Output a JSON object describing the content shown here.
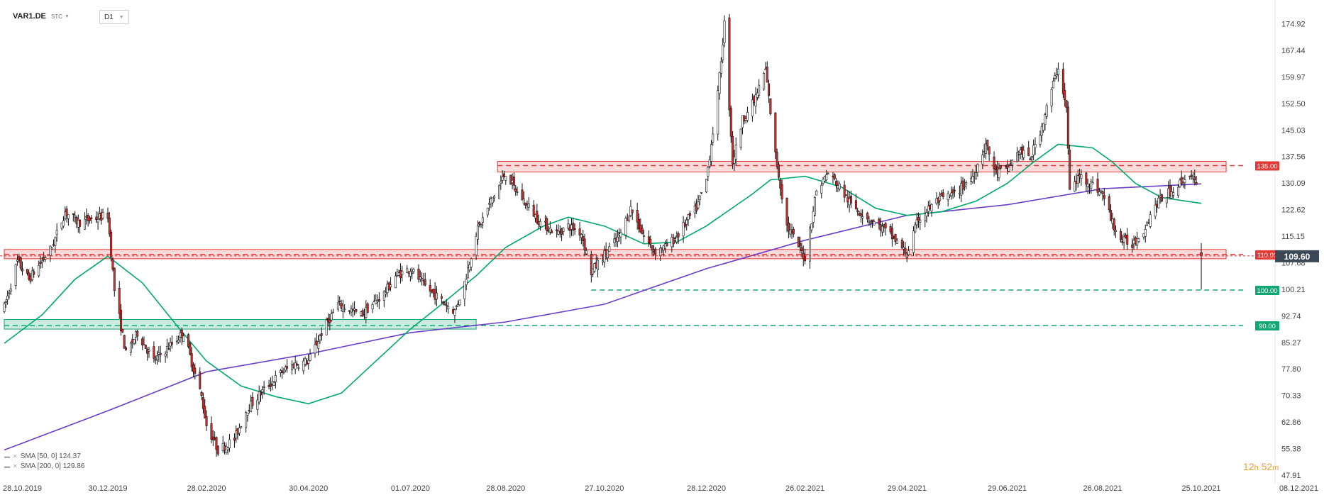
{
  "header": {
    "symbol": "VAR1.DE",
    "mode": "STC",
    "timeframe": "D1"
  },
  "legend": [
    {
      "label": "SMA [50, 0] 124.37",
      "color": "#00a86b"
    },
    {
      "label": "SMA [200, 0] 129.86",
      "color": "#6a3fc9"
    }
  ],
  "countdown": {
    "hours": "12",
    "h_unit": "h",
    "minutes": "52",
    "m_unit": "m"
  },
  "icons": {
    "visibility": "eye-icon",
    "remove": "close-icon",
    "dropdown": "chevron-down-icon"
  },
  "chart_data": {
    "type": "candlestick",
    "symbol": "VAR1.DE",
    "timeframe": "D1",
    "xlim": [
      "28.10.2019",
      "08.12.2021"
    ],
    "ylim": [
      47.91,
      180
    ],
    "x_ticks": [
      "28.10.2019",
      "30.12.2019",
      "28.02.2020",
      "30.04.2020",
      "01.07.2020",
      "28.08.2020",
      "27.10.2020",
      "28.12.2020",
      "26.02.2021",
      "29.04.2021",
      "29.06.2021",
      "26.08.2021",
      "25.10.2021",
      "08.12.2021"
    ],
    "y_ticks": [
      174.92,
      167.44,
      159.97,
      152.5,
      145.03,
      137.56,
      130.09,
      122.62,
      115.15,
      107.68,
      100.21,
      92.74,
      85.27,
      77.8,
      70.33,
      62.86,
      55.38,
      47.91
    ],
    "current_price": 109.6,
    "close_path": [
      [
        "28.10.2019",
        95
      ],
      [
        "05.11.2019",
        108
      ],
      [
        "12.11.2019",
        103
      ],
      [
        "26.11.2019",
        112
      ],
      [
        "04.12.2019",
        122
      ],
      [
        "12.12.2019",
        119
      ],
      [
        "30.12.2019",
        121
      ],
      [
        "03.01.2020",
        100
      ],
      [
        "10.01.2020",
        82
      ],
      [
        "17.01.2020",
        88
      ],
      [
        "27.01.2020",
        80
      ],
      [
        "05.02.2020",
        84
      ],
      [
        "14.02.2020",
        88
      ],
      [
        "20.02.2020",
        78
      ],
      [
        "25.02.2020",
        70
      ],
      [
        "28.02.2020",
        62
      ],
      [
        "06.03.2020",
        55
      ],
      [
        "16.03.2020",
        58
      ],
      [
        "23.03.2020",
        66
      ],
      [
        "01.04.2020",
        71
      ],
      [
        "14.04.2020",
        77
      ],
      [
        "21.04.2020",
        79
      ],
      [
        "30.04.2020",
        80
      ],
      [
        "08.05.2020",
        88
      ],
      [
        "18.05.2020",
        96
      ],
      [
        "01.06.2020",
        93
      ],
      [
        "15.06.2020",
        99
      ],
      [
        "22.06.2020",
        104
      ],
      [
        "01.07.2020",
        106
      ],
      [
        "10.07.2020",
        101
      ],
      [
        "20.07.2020",
        97
      ],
      [
        "28.07.2020",
        94
      ],
      [
        "03.08.2020",
        102
      ],
      [
        "10.08.2020",
        116
      ],
      [
        "18.08.2020",
        124
      ],
      [
        "28.08.2020",
        133
      ],
      [
        "03.09.2020",
        128
      ],
      [
        "10.09.2020",
        124
      ],
      [
        "18.09.2020",
        119
      ],
      [
        "28.09.2020",
        116
      ],
      [
        "05.10.2020",
        118
      ],
      [
        "13.10.2020",
        116
      ],
      [
        "19.10.2020",
        105
      ],
      [
        "27.10.2020",
        110
      ],
      [
        "05.11.2020",
        115
      ],
      [
        "12.11.2020",
        123
      ],
      [
        "19.11.2020",
        116
      ],
      [
        "26.11.2020",
        111
      ],
      [
        "03.12.2020",
        112
      ],
      [
        "10.12.2020",
        115
      ],
      [
        "17.12.2020",
        120
      ],
      [
        "22.12.2020",
        123
      ],
      [
        "28.12.2020",
        131
      ],
      [
        "04.01.2021",
        155
      ],
      [
        "08.01.2021",
        175
      ],
      [
        "13.01.2021",
        136
      ],
      [
        "19.01.2021",
        148
      ],
      [
        "26.01.2021",
        153
      ],
      [
        "02.02.2021",
        162
      ],
      [
        "08.02.2021",
        138
      ],
      [
        "15.02.2021",
        118
      ],
      [
        "26.02.2021",
        109
      ],
      [
        "05.03.2021",
        128
      ],
      [
        "12.03.2021",
        133
      ],
      [
        "19.03.2021",
        129
      ],
      [
        "26.03.2021",
        124
      ],
      [
        "06.04.2021",
        120
      ],
      [
        "15.04.2021",
        117
      ],
      [
        "22.04.2021",
        114
      ],
      [
        "29.04.2021",
        110
      ],
      [
        "06.05.2021",
        120
      ],
      [
        "17.05.2021",
        125
      ],
      [
        "28.05.2021",
        127
      ],
      [
        "08.06.2021",
        132
      ],
      [
        "16.06.2021",
        141
      ],
      [
        "22.06.2021",
        133
      ],
      [
        "29.06.2021",
        134
      ],
      [
        "06.07.2021",
        139
      ],
      [
        "13.07.2021",
        137
      ],
      [
        "20.07.2021",
        146
      ],
      [
        "27.07.2021",
        158
      ],
      [
        "30.07.2021",
        163
      ],
      [
        "04.08.2021",
        151
      ],
      [
        "06.08.2021",
        128
      ],
      [
        "12.08.2021",
        132
      ],
      [
        "19.08.2021",
        130
      ],
      [
        "26.08.2021",
        127
      ],
      [
        "01.09.2021",
        119
      ],
      [
        "06.09.2021",
        114
      ],
      [
        "13.09.2021",
        113
      ],
      [
        "20.09.2021",
        117
      ],
      [
        "27.09.2021",
        124
      ],
      [
        "04.10.2021",
        127
      ],
      [
        "12.10.2021",
        130
      ],
      [
        "18.10.2021",
        133
      ],
      [
        "22.10.2021",
        129
      ],
      [
        "25.10.2021",
        109.6
      ]
    ],
    "last_candle": {
      "open": 110.5,
      "high": 113.2,
      "low": 100.1,
      "close": 109.6
    },
    "sma50": [
      [
        "28.10.2019",
        85
      ],
      [
        "20.11.2019",
        93
      ],
      [
        "10.12.2019",
        103
      ],
      [
        "30.12.2019",
        109.5
      ],
      [
        "20.01.2020",
        102
      ],
      [
        "10.02.2020",
        90
      ],
      [
        "28.02.2020",
        80
      ],
      [
        "20.03.2020",
        73
      ],
      [
        "10.04.2020",
        70
      ],
      [
        "30.04.2020",
        68
      ],
      [
        "20.05.2020",
        71
      ],
      [
        "10.06.2020",
        80
      ],
      [
        "01.07.2020",
        89
      ],
      [
        "20.07.2020",
        96
      ],
      [
        "10.08.2020",
        104
      ],
      [
        "28.08.2020",
        112
      ],
      [
        "20.09.2020",
        118
      ],
      [
        "05.10.2020",
        120.5
      ],
      [
        "27.10.2020",
        118
      ],
      [
        "20.11.2020",
        113
      ],
      [
        "10.12.2020",
        113.5
      ],
      [
        "28.12.2020",
        118
      ],
      [
        "25.01.2021",
        127
      ],
      [
        "05.02.2021",
        131
      ],
      [
        "26.02.2021",
        132
      ],
      [
        "20.03.2021",
        129
      ],
      [
        "10.04.2021",
        123
      ],
      [
        "29.04.2021",
        121
      ],
      [
        "20.05.2021",
        122
      ],
      [
        "10.06.2021",
        125
      ],
      [
        "29.06.2021",
        130
      ],
      [
        "15.07.2021",
        136
      ],
      [
        "30.07.2021",
        141
      ],
      [
        "20.08.2021",
        140
      ],
      [
        "01.09.2021",
        136
      ],
      [
        "15.09.2021",
        130
      ],
      [
        "01.10.2021",
        126
      ],
      [
        "25.10.2021",
        124.37
      ]
    ],
    "sma200": [
      [
        "28.10.2019",
        55
      ],
      [
        "30.12.2019",
        66
      ],
      [
        "28.02.2020",
        77
      ],
      [
        "30.04.2020",
        82
      ],
      [
        "01.07.2020",
        88
      ],
      [
        "28.08.2020",
        91
      ],
      [
        "27.10.2020",
        96
      ],
      [
        "28.12.2020",
        106
      ],
      [
        "26.02.2021",
        114
      ],
      [
        "29.04.2021",
        121
      ],
      [
        "29.06.2021",
        124
      ],
      [
        "26.08.2021",
        128.5
      ],
      [
        "25.10.2021",
        129.86
      ]
    ],
    "resistance_zones": [
      {
        "label": "135.00",
        "low": 133.2,
        "high": 136.2,
        "from": "23.08.2020",
        "to": "25.10.2021"
      },
      {
        "label": "110.00",
        "low": 108.8,
        "high": 111.4,
        "from": "28.10.2019",
        "to": "25.10.2021"
      }
    ],
    "support_zones": [
      {
        "label": "90.00",
        "low": 89.0,
        "high": 91.7,
        "from": "28.10.2019",
        "to": "10.08.2020"
      }
    ],
    "horizontal_levels": [
      {
        "value": 135.0,
        "label": "135.00",
        "from": "23.08.2020",
        "color": "#e53935"
      },
      {
        "value": 110.0,
        "label": "110.00",
        "from": "28.10.2019",
        "color": "#e53935"
      },
      {
        "value": 100.0,
        "label": "100.00",
        "from": "19.10.2020",
        "color": "#12a672"
      },
      {
        "value": 90.0,
        "label": "90.00",
        "from": "28.10.2019",
        "color": "#12a672"
      }
    ],
    "colors": {
      "up": "#ffffff",
      "down": "#d32f2f",
      "wick": "#111111",
      "resistance": "#e53935",
      "support": "#12a672",
      "sma50": "#00a86b",
      "sma200": "#6a3fc9",
      "price_tag": "#3c4856"
    }
  }
}
